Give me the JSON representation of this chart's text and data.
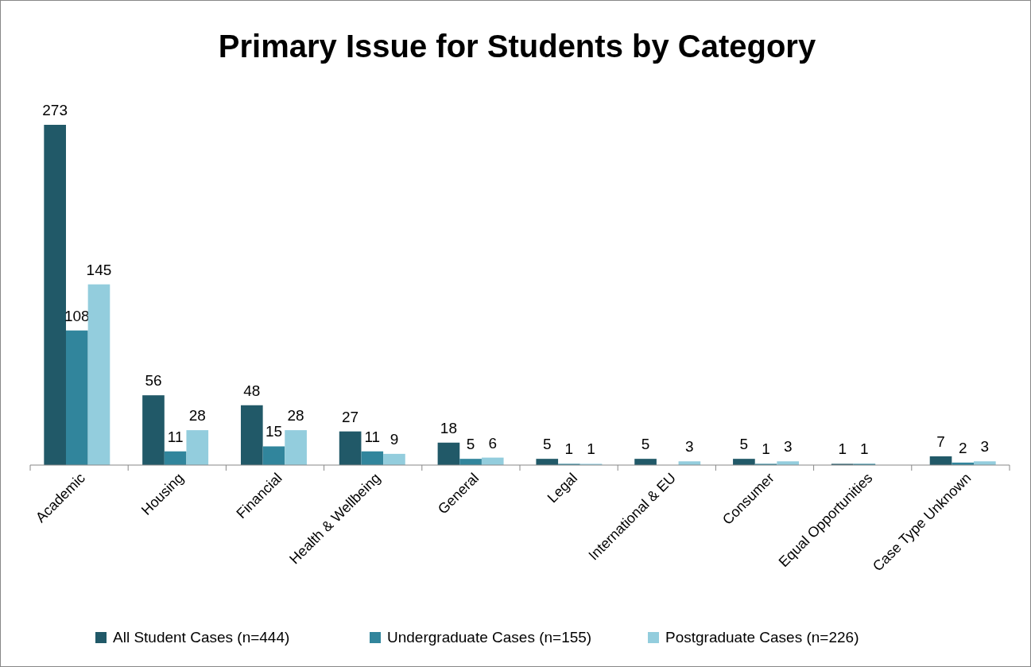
{
  "chart_data": {
    "type": "bar",
    "title": "Primary Issue for Students by Category",
    "categories": [
      "Academic",
      "Housing",
      "Financial",
      "Health & Wellbeing",
      "General",
      "Legal",
      "International & EU",
      "Consumer",
      "Equal Opportunities",
      "Case Type Unknown"
    ],
    "series": [
      {
        "name": "All Student Cases (n=444)",
        "color": "#215968",
        "values": [
          273,
          56,
          48,
          27,
          18,
          5,
          5,
          5,
          1,
          7
        ]
      },
      {
        "name": "Undergraduate Cases (n=155)",
        "color": "#31859c",
        "values": [
          108,
          11,
          15,
          11,
          5,
          1,
          null,
          1,
          1,
          2
        ]
      },
      {
        "name": "Postgraduate Cases (n=226)",
        "color": "#93cddd",
        "values": [
          145,
          28,
          28,
          9,
          6,
          1,
          3,
          3,
          null,
          3
        ]
      }
    ],
    "data_labels": true,
    "legend": "bottom"
  }
}
